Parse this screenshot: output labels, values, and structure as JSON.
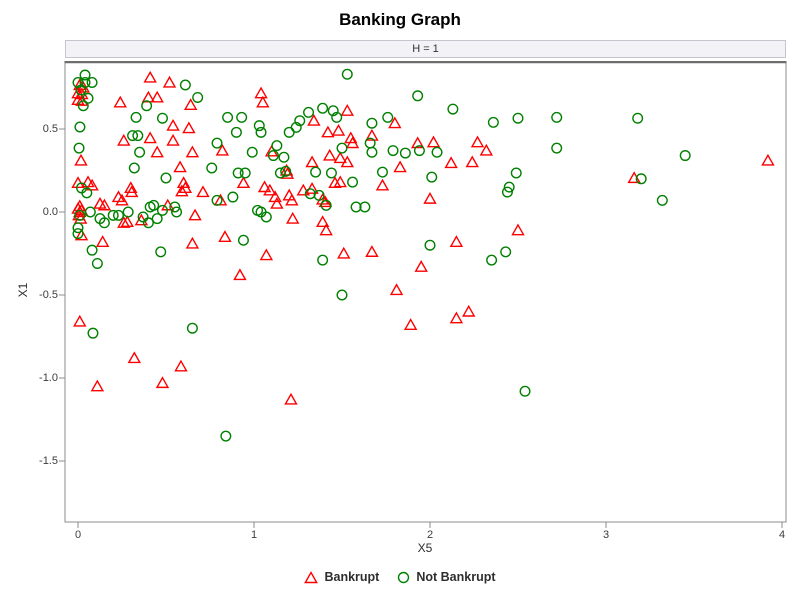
{
  "chart_data": {
    "type": "scatter",
    "title": "Banking Graph",
    "panel_label": "H = 1",
    "xlabel": "X5",
    "ylabel": "X1",
    "xlim": [
      -0.08,
      4.02
    ],
    "ylim": [
      -1.87,
      0.9
    ],
    "xticks": [
      0,
      1,
      2,
      3,
      4
    ],
    "xtick_labels": [
      "0",
      "1",
      "2",
      "3",
      "4"
    ],
    "yticks": [
      0.5,
      0.0,
      -0.5,
      -1.0,
      -1.5
    ],
    "ytick_labels": [
      "0.5",
      "0.0",
      "-0.5",
      "-1.0",
      "-1.5"
    ],
    "grid": false,
    "legend_position": "bottom",
    "series": [
      {
        "name": "Bankrupt",
        "marker": "triangle",
        "color": "#ff0000",
        "points": [
          [
            0.0,
            0.02
          ],
          [
            0.01,
            0.0
          ],
          [
            0.02,
            0.01
          ],
          [
            0.005,
            -0.02
          ],
          [
            0.015,
            -0.04
          ],
          [
            0.01,
            0.035
          ],
          [
            0.01,
            0.765
          ],
          [
            0.03,
            0.75
          ],
          [
            0.0,
            0.715
          ],
          [
            0.022,
            0.71
          ],
          [
            0.0,
            0.675
          ],
          [
            0.022,
            0.67
          ],
          [
            0.017,
            0.31
          ],
          [
            0.0,
            0.175
          ],
          [
            0.057,
            0.18
          ],
          [
            0.08,
            0.16
          ],
          [
            0.02,
            -0.14
          ],
          [
            0.14,
            -0.18
          ],
          [
            0.01,
            -0.66
          ],
          [
            0.11,
            -1.05
          ],
          [
            0.125,
            0.05
          ],
          [
            0.15,
            0.04
          ],
          [
            0.23,
            0.09
          ],
          [
            0.25,
            0.07
          ],
          [
            0.26,
            -0.065
          ],
          [
            0.28,
            -0.06
          ],
          [
            0.36,
            -0.05
          ],
          [
            0.3,
            0.145
          ],
          [
            0.305,
            0.12
          ],
          [
            0.24,
            0.66
          ],
          [
            0.26,
            0.43
          ],
          [
            0.32,
            -0.88
          ],
          [
            0.48,
            -1.03
          ],
          [
            0.585,
            -0.93
          ],
          [
            0.41,
            0.81
          ],
          [
            0.52,
            0.78
          ],
          [
            0.4,
            0.69
          ],
          [
            0.45,
            0.69
          ],
          [
            0.64,
            0.645
          ],
          [
            0.54,
            0.52
          ],
          [
            0.63,
            0.505
          ],
          [
            0.41,
            0.445
          ],
          [
            0.54,
            0.43
          ],
          [
            0.45,
            0.36
          ],
          [
            0.65,
            0.36
          ],
          [
            0.58,
            0.27
          ],
          [
            0.6,
            0.175
          ],
          [
            0.61,
            0.145
          ],
          [
            0.59,
            0.125
          ],
          [
            0.51,
            0.04
          ],
          [
            0.665,
            -0.02
          ],
          [
            0.65,
            -0.19
          ],
          [
            0.71,
            0.12
          ],
          [
            0.81,
            0.07
          ],
          [
            0.82,
            0.37
          ],
          [
            0.835,
            -0.15
          ],
          [
            0.92,
            -0.38
          ],
          [
            0.94,
            0.175
          ],
          [
            1.04,
            0.715
          ],
          [
            1.05,
            0.66
          ],
          [
            1.1,
            0.365
          ],
          [
            1.185,
            0.25
          ],
          [
            1.19,
            0.23
          ],
          [
            1.06,
            0.15
          ],
          [
            1.09,
            0.13
          ],
          [
            1.12,
            0.09
          ],
          [
            1.13,
            0.05
          ],
          [
            1.2,
            0.1
          ],
          [
            1.215,
            0.07
          ],
          [
            1.22,
            -0.04
          ],
          [
            1.07,
            -0.26
          ],
          [
            1.21,
            -1.13
          ],
          [
            1.28,
            0.13
          ],
          [
            1.33,
            0.14
          ],
          [
            1.39,
            0.075
          ],
          [
            1.405,
            0.06
          ],
          [
            1.34,
            0.55
          ],
          [
            1.42,
            0.48
          ],
          [
            1.48,
            0.49
          ],
          [
            1.53,
            0.61
          ],
          [
            1.55,
            0.445
          ],
          [
            1.56,
            0.415
          ],
          [
            1.67,
            0.46
          ],
          [
            1.8,
            0.535
          ],
          [
            1.93,
            0.415
          ],
          [
            2.02,
            0.42
          ],
          [
            2.27,
            0.42
          ],
          [
            2.32,
            0.37
          ],
          [
            1.33,
            0.3
          ],
          [
            1.43,
            0.34
          ],
          [
            1.49,
            0.325
          ],
          [
            1.53,
            0.3
          ],
          [
            1.83,
            0.27
          ],
          [
            2.12,
            0.295
          ],
          [
            2.24,
            0.3
          ],
          [
            1.46,
            0.175
          ],
          [
            1.49,
            0.18
          ],
          [
            1.73,
            0.16
          ],
          [
            2.0,
            0.08
          ],
          [
            1.39,
            -0.06
          ],
          [
            1.41,
            -0.11
          ],
          [
            1.51,
            -0.25
          ],
          [
            1.67,
            -0.24
          ],
          [
            2.15,
            -0.18
          ],
          [
            2.5,
            -0.11
          ],
          [
            1.95,
            -0.33
          ],
          [
            1.81,
            -0.47
          ],
          [
            1.89,
            -0.68
          ],
          [
            2.15,
            -0.64
          ],
          [
            2.22,
            -0.6
          ],
          [
            3.16,
            0.205
          ],
          [
            3.92,
            0.31
          ]
        ]
      },
      {
        "name": "Not Bankrupt",
        "marker": "circle",
        "color": "#008000",
        "points": [
          [
            0.04,
            0.825
          ],
          [
            0.0,
            0.78
          ],
          [
            0.04,
            0.78
          ],
          [
            0.08,
            0.78
          ],
          [
            0.017,
            0.735
          ],
          [
            0.057,
            0.685
          ],
          [
            0.03,
            0.64
          ],
          [
            0.011,
            0.512
          ],
          [
            0.006,
            0.385
          ],
          [
            0.02,
            0.145
          ],
          [
            0.05,
            0.115
          ],
          [
            0.01,
            -0.02
          ],
          [
            0.07,
            0.0
          ],
          [
            0.0,
            -0.095
          ],
          [
            0.0,
            -0.13
          ],
          [
            0.125,
            -0.04
          ],
          [
            0.15,
            -0.065
          ],
          [
            0.08,
            -0.23
          ],
          [
            0.11,
            -0.31
          ],
          [
            0.085,
            -0.73
          ],
          [
            0.2,
            -0.02
          ],
          [
            0.23,
            -0.02
          ],
          [
            0.285,
            0.0
          ],
          [
            0.37,
            -0.03
          ],
          [
            0.4,
            -0.065
          ],
          [
            0.45,
            -0.04
          ],
          [
            0.41,
            0.03
          ],
          [
            0.48,
            0.01
          ],
          [
            0.56,
            0.0
          ],
          [
            0.39,
            0.64
          ],
          [
            0.61,
            0.765
          ],
          [
            0.68,
            0.69
          ],
          [
            0.33,
            0.57
          ],
          [
            0.48,
            0.565
          ],
          [
            0.85,
            0.57
          ],
          [
            0.93,
            0.57
          ],
          [
            0.9,
            0.48
          ],
          [
            1.03,
            0.52
          ],
          [
            1.04,
            0.48
          ],
          [
            1.2,
            0.48
          ],
          [
            1.24,
            0.51
          ],
          [
            1.26,
            0.55
          ],
          [
            0.31,
            0.46
          ],
          [
            0.34,
            0.46
          ],
          [
            0.35,
            0.36
          ],
          [
            0.79,
            0.415
          ],
          [
            0.99,
            0.36
          ],
          [
            1.13,
            0.4
          ],
          [
            1.11,
            0.34
          ],
          [
            1.17,
            0.33
          ],
          [
            0.32,
            0.265
          ],
          [
            0.5,
            0.205
          ],
          [
            0.76,
            0.265
          ],
          [
            0.91,
            0.235
          ],
          [
            0.95,
            0.235
          ],
          [
            1.15,
            0.235
          ],
          [
            1.18,
            0.245
          ],
          [
            0.43,
            0.04
          ],
          [
            0.55,
            0.03
          ],
          [
            0.79,
            0.07
          ],
          [
            0.88,
            0.09
          ],
          [
            1.02,
            0.01
          ],
          [
            1.04,
            0.0
          ],
          [
            1.07,
            -0.03
          ],
          [
            0.47,
            -0.24
          ],
          [
            0.94,
            -0.17
          ],
          [
            0.65,
            -0.7
          ],
          [
            1.5,
            -0.5
          ],
          [
            1.53,
            0.83
          ],
          [
            1.93,
            0.7
          ],
          [
            2.13,
            0.62
          ],
          [
            1.39,
            0.625
          ],
          [
            1.45,
            0.61
          ],
          [
            1.31,
            0.6
          ],
          [
            1.47,
            0.57
          ],
          [
            1.76,
            0.57
          ],
          [
            1.67,
            0.535
          ],
          [
            2.36,
            0.54
          ],
          [
            2.5,
            0.565
          ],
          [
            1.5,
            0.385
          ],
          [
            1.66,
            0.415
          ],
          [
            1.67,
            0.36
          ],
          [
            1.79,
            0.37
          ],
          [
            1.86,
            0.355
          ],
          [
            1.94,
            0.37
          ],
          [
            2.04,
            0.36
          ],
          [
            1.35,
            0.24
          ],
          [
            1.44,
            0.235
          ],
          [
            1.56,
            0.18
          ],
          [
            1.73,
            0.24
          ],
          [
            2.01,
            0.21
          ],
          [
            2.49,
            0.235
          ],
          [
            2.45,
            0.15
          ],
          [
            1.58,
            0.03
          ],
          [
            1.63,
            0.03
          ],
          [
            1.32,
            0.11
          ],
          [
            1.37,
            0.1
          ],
          [
            1.41,
            0.04
          ],
          [
            2.44,
            0.12
          ],
          [
            2.0,
            -0.2
          ],
          [
            1.39,
            -0.29
          ],
          [
            2.35,
            -0.29
          ],
          [
            2.43,
            -0.24
          ],
          [
            2.72,
            0.57
          ],
          [
            3.18,
            0.565
          ],
          [
            2.72,
            0.385
          ],
          [
            3.45,
            0.34
          ],
          [
            3.2,
            0.2
          ],
          [
            3.32,
            0.07
          ],
          [
            0.84,
            -1.35
          ],
          [
            2.54,
            -1.08
          ]
        ]
      }
    ],
    "colors": {
      "bankrupt": "#ff0000",
      "not_bankrupt": "#008000",
      "panel_background": "#f2f2f7",
      "frame_border": "#8c8c8c"
    }
  }
}
